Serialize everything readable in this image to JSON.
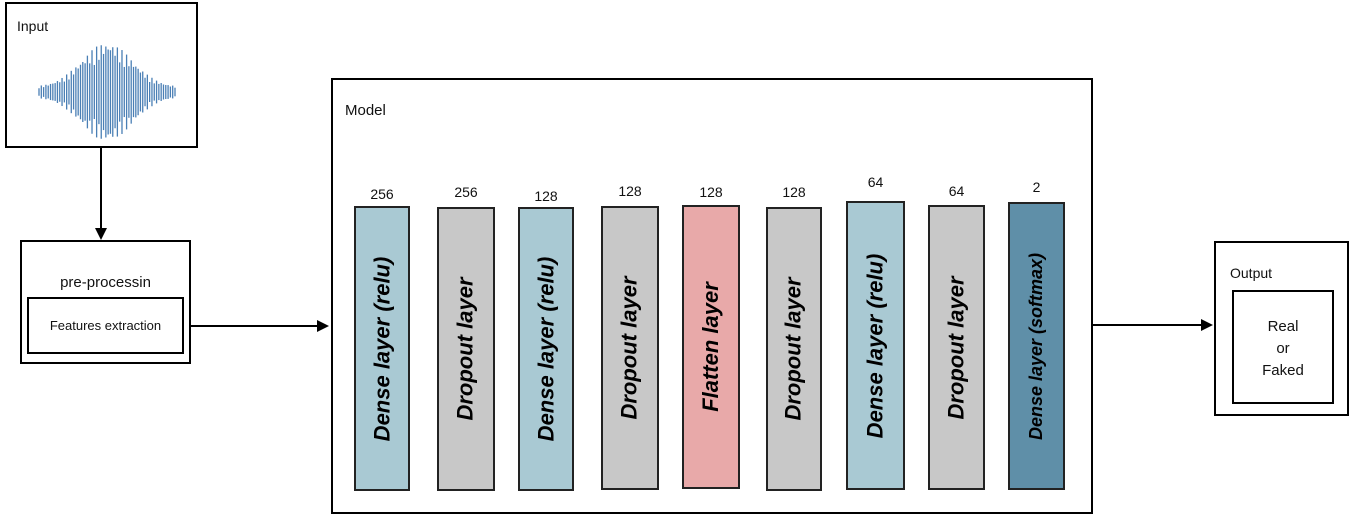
{
  "input": {
    "title": "Input"
  },
  "preprocessing": {
    "title": "pre-processin",
    "inner_label": "Features extraction"
  },
  "model": {
    "title": "Model",
    "layers": [
      {
        "label": "Dense layer (relu)",
        "units": "256",
        "color": "#a9c9d3"
      },
      {
        "label": "Dropout layer",
        "units": "256",
        "color": "#c8c8c8"
      },
      {
        "label": "Dense layer (relu)",
        "units": "128",
        "color": "#a9c9d3"
      },
      {
        "label": "Dropout layer",
        "units": "128",
        "color": "#c8c8c8"
      },
      {
        "label": "Flatten layer",
        "units": "128",
        "color": "#e8a9a9"
      },
      {
        "label": "Dropout layer",
        "units": "128",
        "color": "#c8c8c8"
      },
      {
        "label": "Dense layer (relu)",
        "units": "64",
        "color": "#a9c9d3"
      },
      {
        "label": "Dropout layer",
        "units": "64",
        "color": "#c8c8c8"
      },
      {
        "label": "Dense layer (softmax)",
        "units": "2",
        "color": "#5f8fa8"
      }
    ]
  },
  "output": {
    "title": "Output",
    "line1": "Real",
    "line2": "or",
    "line3": "Faked"
  },
  "colors": {
    "waveform": "#4a7fb5",
    "border": "#000000"
  }
}
